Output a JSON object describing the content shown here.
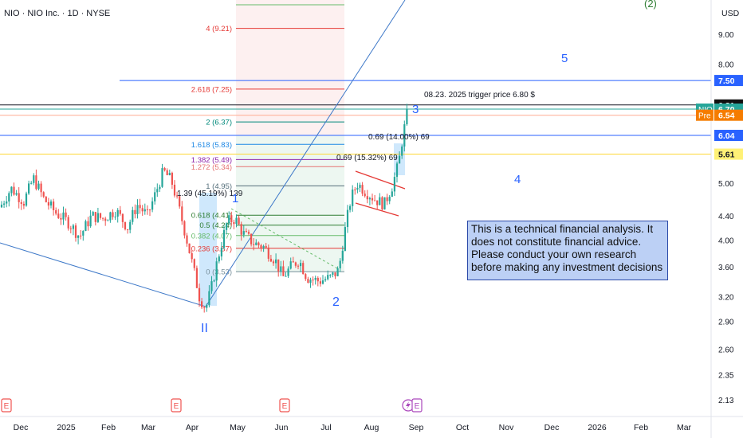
{
  "header": {
    "symbol_line": "NIO · NIO Inc. · 1D · NYSE",
    "currency": "USD"
  },
  "note": "This is a technical financial analysis. It does not constitute financial advice. Please conduct your own research before making any investment decisions",
  "chart_data": {
    "type": "candlestick",
    "symbol": "NIO",
    "exchange": "NYSE",
    "interval": "1D",
    "y_scale": "log",
    "ylim": [
      2.05,
      10.0
    ],
    "y_ticks": [
      9.0,
      8.0,
      7.5,
      6.81,
      6.7,
      6.54,
      6.04,
      5.61,
      5.0,
      4.4,
      4.0,
      3.6,
      3.2,
      2.9,
      2.6,
      2.35,
      2.13
    ],
    "y_tick_labels": [
      "9.00",
      "8.00",
      "7.50",
      "6.81",
      "6.70",
      "6.54",
      "6.04",
      "5.61",
      "5.00",
      "4.40",
      "4.00",
      "3.60",
      "3.20",
      "2.90",
      "2.60",
      "2.35",
      "2.13"
    ],
    "x_labels": [
      "Dec",
      "2025",
      "Feb",
      "Mar",
      "Apr",
      "May",
      "Jun",
      "Jul",
      "Aug",
      "Sep",
      "Oct",
      "Nov",
      "Dec",
      "2026",
      "Feb",
      "Mar"
    ],
    "price_tags": [
      {
        "label": "",
        "value": 7.5,
        "color": "#2962ff"
      },
      {
        "label": "",
        "value": 6.81,
        "color": "#111111"
      },
      {
        "label": "NIO",
        "value": 6.7,
        "color": "#26a69a"
      },
      {
        "label": "Pre",
        "value": 6.54,
        "color": "#f57c00"
      },
      {
        "label": "",
        "value": 6.04,
        "color": "#2962ff"
      },
      {
        "label": "",
        "value": 5.61,
        "color": "#fff176"
      }
    ],
    "fib_levels": [
      {
        "label": "4 (9.21)",
        "value": 9.21,
        "color": "#e53935"
      },
      {
        "label": "2.618 (7.25)",
        "value": 7.25,
        "color": "#e53935"
      },
      {
        "label": "2 (6.37)",
        "value": 6.37,
        "color": "#00897b"
      },
      {
        "label": "1.618 (5.83)",
        "value": 5.83,
        "color": "#1e88e5"
      },
      {
        "label": "1.382 (5.49)",
        "value": 5.49,
        "color": "#8e24aa"
      },
      {
        "label": "1.272 (5.34)",
        "value": 5.34,
        "color": "#e57373"
      },
      {
        "label": "1 (4.95)",
        "value": 4.95,
        "color": "#546e7a"
      },
      {
        "label": "0.618 (4.41)",
        "value": 4.41,
        "color": "#2e7d32"
      },
      {
        "label": "0.5 (4.24)",
        "value": 4.24,
        "color": "#2e7d32"
      },
      {
        "label": "0.382 (4.07)",
        "value": 4.07,
        "color": "#66bb6a"
      },
      {
        "label": "0.236 (3.87)",
        "value": 3.87,
        "color": "#e53935"
      },
      {
        "label": "0 (3.53)",
        "value": 3.53,
        "color": "#78909c"
      }
    ],
    "annotations": [
      {
        "text": "08.23. 2025 trigger price 6.80 $"
      },
      {
        "text": "0.69 (14.00%) 69"
      },
      {
        "text": "0.69 (15.32%) 69"
      },
      {
        "text": "1.39 (45.19%) 139"
      }
    ],
    "wave_labels": [
      {
        "text": "(2)",
        "color": "#2e7d32"
      },
      {
        "text": "5",
        "color": "#2962ff"
      },
      {
        "text": "3",
        "color": "#2962ff"
      },
      {
        "text": "4",
        "color": "#2962ff"
      },
      {
        "text": "1",
        "color": "#2962ff"
      },
      {
        "text": "2",
        "color": "#2962ff"
      },
      {
        "text": "II",
        "color": "#2962ff"
      }
    ],
    "events": [
      "E",
      "E",
      "E",
      "E"
    ],
    "colors": {
      "up": "#26a69a",
      "down": "#ef5350"
    }
  }
}
